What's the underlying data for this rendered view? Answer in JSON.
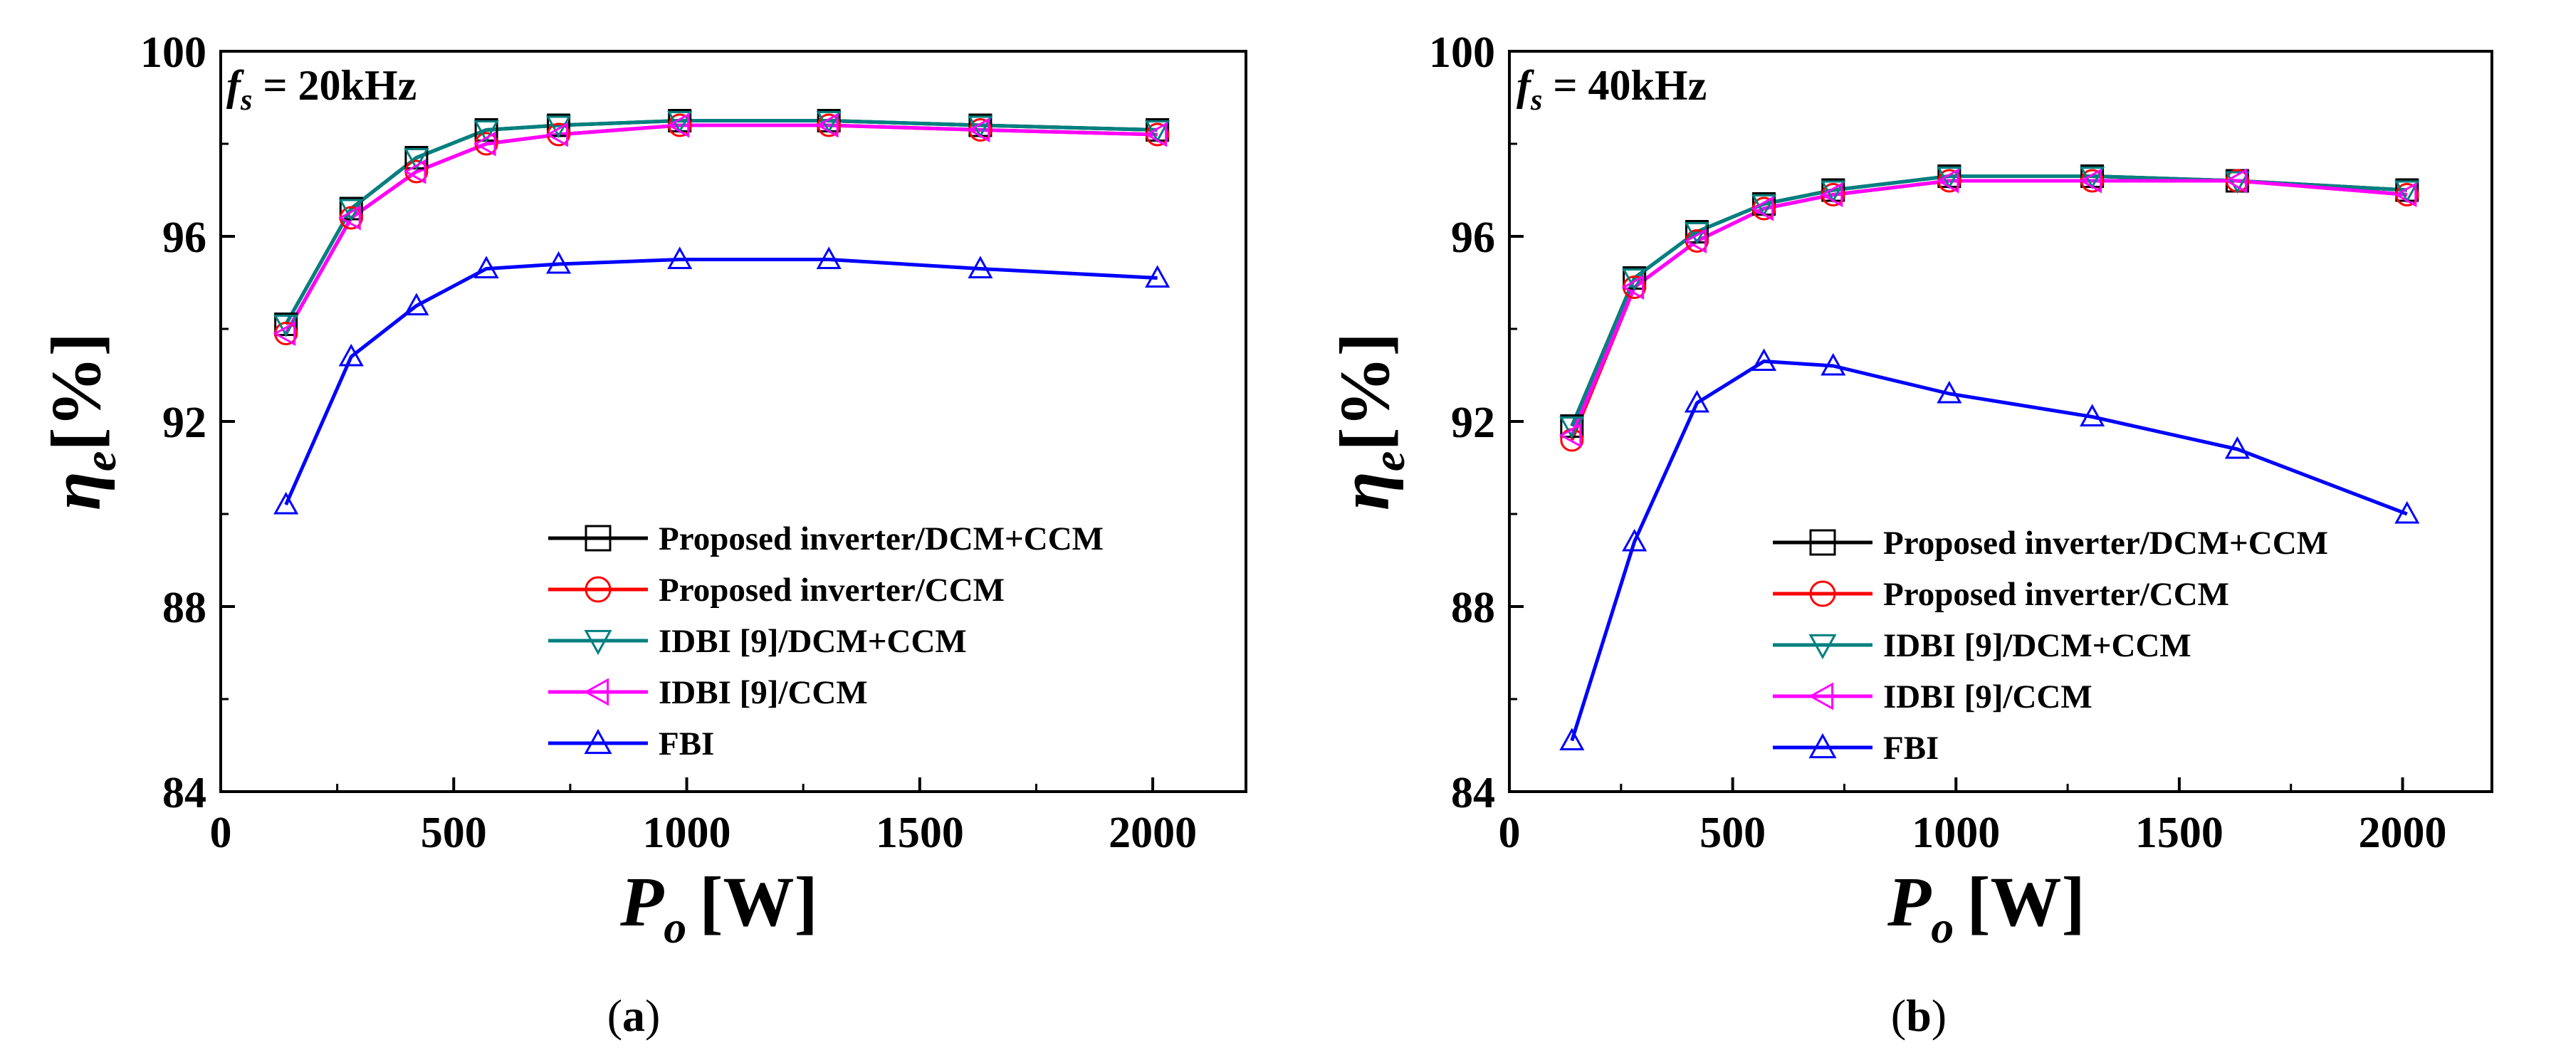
{
  "chart_data": [
    {
      "type": "line",
      "panel_label": "a",
      "annotation": {
        "symbol": "f",
        "subscript": "s",
        "text": " = 20kHz"
      },
      "xlabel": {
        "symbol": "P",
        "subscript": "o",
        "unit": "[W]"
      },
      "ylabel": {
        "symbol": "η",
        "subscript": "e",
        "unit": "[%]"
      },
      "xlim": [
        0,
        2200
      ],
      "ylim": [
        84,
        100
      ],
      "xticks": [
        0,
        500,
        1000,
        1500,
        2000
      ],
      "yticks": [
        84,
        88,
        92,
        96,
        100
      ],
      "x": [
        140,
        280,
        420,
        570,
        725,
        985,
        1305,
        1630,
        2010
      ],
      "series": [
        {
          "name": "Proposed inverter/DCM+CCM",
          "color": "#000000",
          "marker": "square",
          "values": [
            94.1,
            96.6,
            97.7,
            98.3,
            98.4,
            98.5,
            98.5,
            98.4,
            98.3
          ]
        },
        {
          "name": "Proposed inverter/CCM",
          "color": "#ff0000",
          "marker": "circle",
          "values": [
            93.9,
            96.4,
            97.4,
            98.0,
            98.2,
            98.4,
            98.4,
            98.3,
            98.2
          ]
        },
        {
          "name": "IDBI [9]/DCM+CCM",
          "color": "#008080",
          "marker": "triangle-down",
          "values": [
            94.1,
            96.6,
            97.7,
            98.3,
            98.4,
            98.5,
            98.5,
            98.4,
            98.3
          ]
        },
        {
          "name": "IDBI [9]/CCM",
          "color": "#ff00ff",
          "marker": "triangle-left",
          "values": [
            93.9,
            96.4,
            97.4,
            98.0,
            98.2,
            98.4,
            98.4,
            98.3,
            98.2
          ]
        },
        {
          "name": "FBI",
          "color": "#0000ff",
          "marker": "triangle-up",
          "values": [
            90.2,
            93.4,
            94.5,
            95.3,
            95.4,
            95.5,
            95.5,
            95.3,
            95.1
          ]
        }
      ],
      "legend": "bottom-right"
    },
    {
      "type": "line",
      "panel_label": "b",
      "annotation": {
        "symbol": "f",
        "subscript": "s",
        "text": " = 40kHz"
      },
      "xlabel": {
        "symbol": "P",
        "subscript": "o",
        "unit": "[W]"
      },
      "ylabel": {
        "symbol": "η",
        "subscript": "e",
        "unit": "[%]"
      },
      "xlim": [
        0,
        2200
      ],
      "ylim": [
        84,
        100
      ],
      "xticks": [
        0,
        500,
        1000,
        1500,
        2000
      ],
      "yticks": [
        84,
        88,
        92,
        96,
        100
      ],
      "x": [
        140,
        280,
        420,
        570,
        725,
        985,
        1305,
        1630,
        2010
      ],
      "series": [
        {
          "name": "Proposed inverter/DCM+CCM",
          "color": "#000000",
          "marker": "square",
          "values": [
            91.9,
            95.1,
            96.1,
            96.7,
            97.0,
            97.3,
            97.3,
            97.2,
            97.0
          ]
        },
        {
          "name": "Proposed inverter/CCM",
          "color": "#ff0000",
          "marker": "circle",
          "values": [
            91.6,
            94.9,
            95.9,
            96.6,
            96.9,
            97.2,
            97.2,
            97.2,
            96.9
          ]
        },
        {
          "name": "IDBI [9]/DCM+CCM",
          "color": "#008080",
          "marker": "triangle-down",
          "values": [
            91.9,
            95.1,
            96.1,
            96.7,
            97.0,
            97.3,
            97.3,
            97.2,
            97.0
          ]
        },
        {
          "name": "IDBI [9]/CCM",
          "color": "#ff00ff",
          "marker": "triangle-left",
          "values": [
            91.7,
            94.9,
            95.9,
            96.6,
            96.9,
            97.2,
            97.2,
            97.2,
            96.9
          ]
        },
        {
          "name": "FBI",
          "color": "#0000ff",
          "marker": "triangle-up",
          "values": [
            85.1,
            89.4,
            92.4,
            93.3,
            93.2,
            92.6,
            92.1,
            91.4,
            90.0
          ]
        }
      ],
      "legend": "bottom-right"
    }
  ]
}
